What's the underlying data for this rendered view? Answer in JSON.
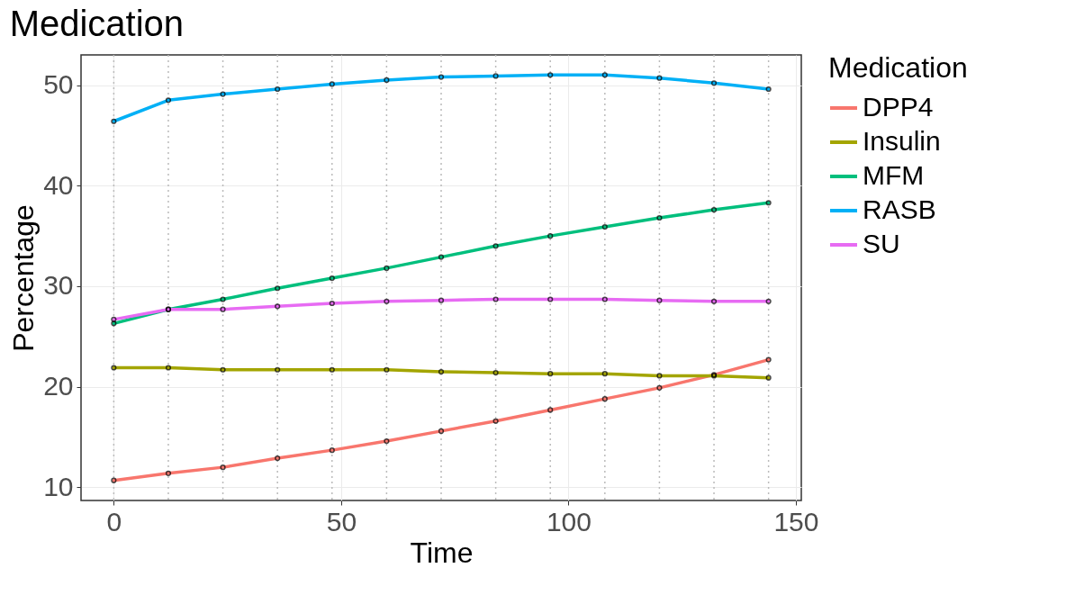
{
  "chart_data": {
    "type": "line",
    "title": "Medication",
    "xlabel": "Time",
    "ylabel": "Percentage",
    "legend_title": "Medication",
    "x": [
      0,
      12,
      24,
      36,
      48,
      60,
      72,
      84,
      96,
      108,
      120,
      132,
      144
    ],
    "series": [
      {
        "name": "DPP4",
        "color": "#f8766d",
        "values": [
          10.7,
          11.4,
          12.0,
          12.9,
          13.7,
          14.6,
          15.6,
          16.6,
          17.7,
          18.8,
          19.9,
          21.2,
          22.7
        ]
      },
      {
        "name": "Insulin",
        "color": "#a3a500",
        "values": [
          21.9,
          21.9,
          21.7,
          21.7,
          21.7,
          21.7,
          21.5,
          21.4,
          21.3,
          21.3,
          21.1,
          21.1,
          20.9
        ]
      },
      {
        "name": "MFM",
        "color": "#00bf7d",
        "values": [
          26.3,
          27.7,
          28.7,
          29.8,
          30.8,
          31.8,
          32.9,
          34.0,
          35.0,
          35.9,
          36.8,
          37.6,
          38.3
        ]
      },
      {
        "name": "RASB",
        "color": "#00b0f6",
        "values": [
          46.4,
          48.5,
          49.1,
          49.6,
          50.1,
          50.5,
          50.8,
          50.9,
          51.0,
          51.0,
          50.7,
          50.2,
          49.6
        ]
      },
      {
        "name": "SU",
        "color": "#e76bf3",
        "values": [
          26.7,
          27.7,
          27.7,
          28.0,
          28.3,
          28.5,
          28.6,
          28.7,
          28.7,
          28.7,
          28.6,
          28.5,
          28.5
        ]
      }
    ],
    "xlim": [
      -7.2,
      151.2
    ],
    "xticks": [
      0,
      50,
      100,
      150
    ],
    "ylim": [
      8.7,
      53
    ],
    "yticks": [
      10,
      20,
      30,
      40,
      50
    ],
    "ref_lines": [
      {
        "axis": "x",
        "value": 0,
        "line_style": "dotted",
        "color": "#bbbbbb"
      },
      {
        "axis": "x",
        "value": 12,
        "line_style": "dotted",
        "color": "#bbbbbb"
      },
      {
        "axis": "x",
        "value": 24,
        "line_style": "dotted",
        "color": "#bbbbbb"
      },
      {
        "axis": "x",
        "value": 36,
        "line_style": "dotted",
        "color": "#bbbbbb"
      },
      {
        "axis": "x",
        "value": 48,
        "line_style": "dotted",
        "color": "#bbbbbb"
      },
      {
        "axis": "x",
        "value": 60,
        "line_style": "dotted",
        "color": "#bbbbbb"
      },
      {
        "axis": "x",
        "value": 72,
        "line_style": "dotted",
        "color": "#bbbbbb"
      },
      {
        "axis": "x",
        "value": 84,
        "line_style": "dotted",
        "color": "#bbbbbb"
      },
      {
        "axis": "x",
        "value": 96,
        "line_style": "dotted",
        "color": "#bbbbbb"
      },
      {
        "axis": "x",
        "value": 108,
        "line_style": "dotted",
        "color": "#bbbbbb"
      },
      {
        "axis": "x",
        "value": 120,
        "line_style": "dotted",
        "color": "#bbbbbb"
      },
      {
        "axis": "x",
        "value": 132,
        "line_style": "dotted",
        "color": "#bbbbbb"
      },
      {
        "axis": "x",
        "value": 144,
        "line_style": "dotted",
        "color": "#bbbbbb"
      }
    ],
    "grid": true,
    "legend": "right",
    "marker": "circle",
    "line_style": "solid"
  }
}
